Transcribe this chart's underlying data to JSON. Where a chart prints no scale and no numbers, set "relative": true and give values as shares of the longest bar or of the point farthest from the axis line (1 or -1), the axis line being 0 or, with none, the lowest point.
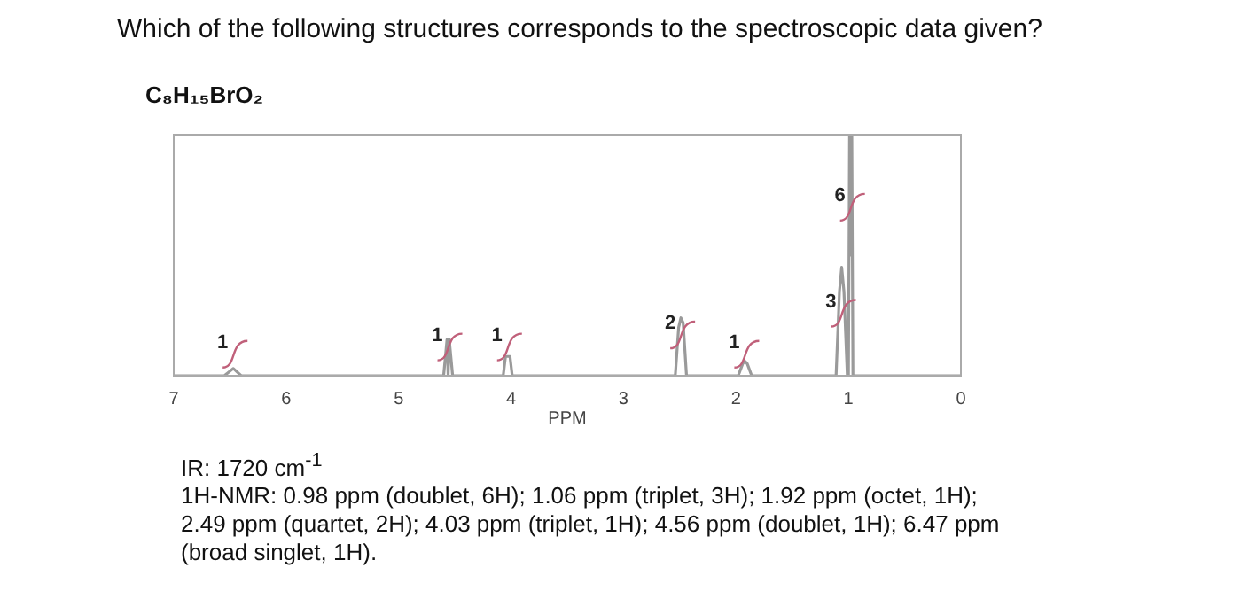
{
  "chart_data": {
    "type": "line",
    "title": "Which of the following structures corresponds to the spectroscopic data given?",
    "subtitle": "C₈H₁₅BrO₂",
    "xlabel": "PPM",
    "relative": true,
    "xlim": [
      7,
      0
    ],
    "xticks": [
      7,
      6,
      5,
      4,
      3,
      2,
      1,
      0
    ],
    "grid": false,
    "legend": false,
    "marker": "none",
    "line_style": "solid",
    "series": [
      {
        "color": "#9a9a9a",
        "x": [
          7,
          6.55,
          6.47,
          6.4,
          4.6,
          4.57,
          4.56,
          4.55,
          4.52,
          4.07,
          4.05,
          4.03,
          4.01,
          3.99,
          2.54,
          2.51,
          2.49,
          2.47,
          2.44,
          1.98,
          1.94,
          1.92,
          1.9,
          1.86,
          1.11,
          1.08,
          1.06,
          1.04,
          1.01,
          1,
          0.99,
          0.98,
          0.97,
          0.96,
          0
        ],
        "values": [
          0,
          0,
          0.03,
          0,
          0,
          0.15,
          0,
          0.15,
          0,
          0,
          0.08,
          0.08,
          0.08,
          0,
          0,
          0.2,
          0.24,
          0.22,
          0,
          0,
          0.05,
          0.06,
          0.05,
          0,
          0,
          0.35,
          0.45,
          0.35,
          0,
          0,
          1,
          0.5,
          1,
          0,
          0
        ]
      }
    ],
    "annotations": [
      {
        "text": "1",
        "x": 6.47,
        "y": 0.1
      },
      {
        "text": "1",
        "x": 4.56,
        "y": 0.13
      },
      {
        "text": "1",
        "x": 4.03,
        "y": 0.13
      },
      {
        "text": "2",
        "x": 2.49,
        "y": 0.18
      },
      {
        "text": "1",
        "x": 1.92,
        "y": 0.1
      },
      {
        "text": "3",
        "x": 1.06,
        "y": 0.27
      },
      {
        "text": "6",
        "x": 0.98,
        "y": 0.71
      },
      "IR: 1720 cm$^{-1}$",
      "1H-NMR:  0.98 ppm (doublet, 6H); 1.06 ppm (triplet, 3H); 1.92 ppm (octet, 1H); 2.49 ppm (quartet, 2H); 4.03 ppm (triplet, 1H); 4.56 ppm (doublet, 1H); 6.47 ppm (broad singlet, 1H)."
    ]
  }
}
